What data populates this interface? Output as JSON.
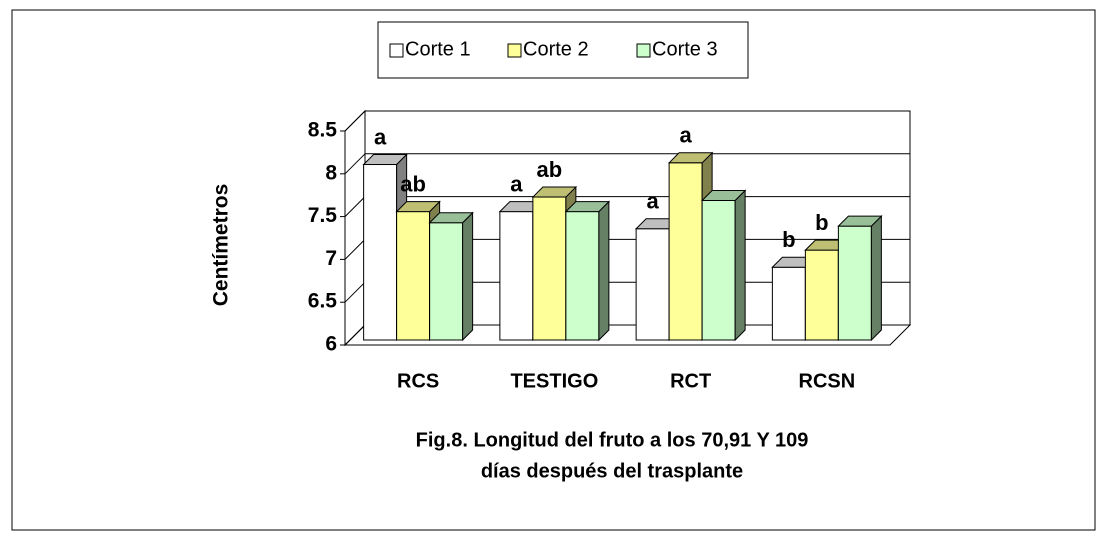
{
  "chart_data": {
    "type": "bar",
    "title": [
      "Fig.8. Longitud del fruto a los 70,91 Y 109",
      "días  después del trasplante"
    ],
    "y_label": "Centímetros",
    "categories": [
      "RCS",
      "TESTIGO",
      "RCT",
      "RCSN"
    ],
    "series": [
      {
        "name": "Corte 1",
        "color": "#ffffff",
        "values": [
          8.05,
          7.5,
          7.3,
          6.85
        ],
        "letters": [
          "a",
          "a",
          "a",
          "b"
        ]
      },
      {
        "name": "Corte 2",
        "color": "#ffff99",
        "values": [
          7.5,
          7.67,
          8.07,
          7.05
        ],
        "letters": [
          "ab",
          "ab",
          "a",
          "b"
        ]
      },
      {
        "name": "Corte 3",
        "color": "#ccffcc",
        "values": [
          7.37,
          7.5,
          7.63,
          7.33
        ],
        "letters": [
          null,
          null,
          null,
          null
        ]
      }
    ],
    "ylim": [
      6,
      8.5
    ],
    "yticks": [
      6,
      6.5,
      7,
      7.5,
      8,
      8.5
    ],
    "grid": true,
    "legend": "top"
  }
}
